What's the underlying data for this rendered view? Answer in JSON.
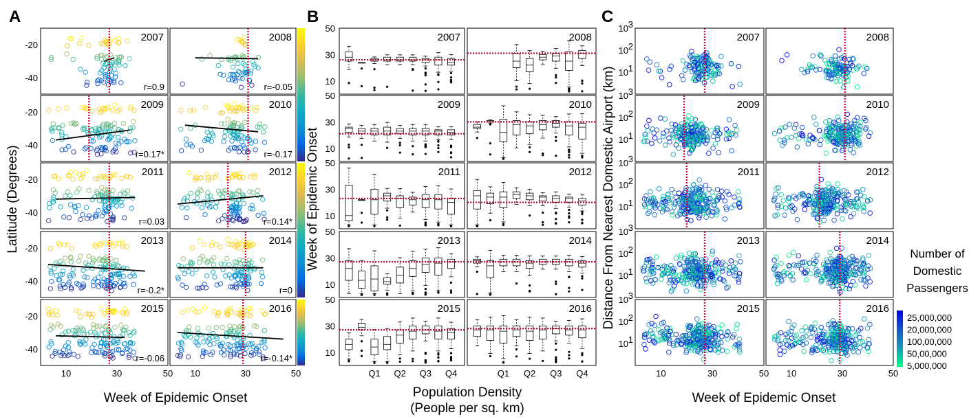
{
  "panel_labels": [
    "A",
    "B",
    "C"
  ],
  "colors": {
    "parula": [
      "#352a87",
      "#0268e1",
      "#108ed2",
      "#0fabc5",
      "#38b99e",
      "#92bf73",
      "#d9ba56",
      "#fcce2e",
      "#f9fb0e"
    ],
    "panelC": [
      "#0000e0",
      "#1858cc",
      "#1a9bb8",
      "#00ff88"
    ],
    "dashed_line": "#d6002a"
  },
  "chart_data": [
    {
      "panel": "A",
      "type": "scatter",
      "xlabel": "Week of Epidemic Onset",
      "ylabel": "Latitude (Degrees)",
      "xticks": [
        "10",
        "30",
        "50"
      ],
      "yticks": [
        "-20",
        "-40"
      ],
      "xlim": [
        0,
        50
      ],
      "ylim": [
        -50,
        -10
      ],
      "years": [
        {
          "year": "2007",
          "r": "r=0.9",
          "onset_week": 27,
          "trend": [
            25,
            -30,
            29,
            -28
          ],
          "cluster": 27,
          "spread": 0.25
        },
        {
          "year": "2008",
          "r": "r=-0.05",
          "onset_week": 31,
          "trend": [
            10,
            -28,
            35,
            -28.5
          ],
          "cluster": 28,
          "spread": 0.15
        },
        {
          "year": "2009",
          "r": "r=0.17*",
          "onset_week": 19,
          "trend": [
            6,
            -37,
            35,
            -31
          ],
          "cluster": 25,
          "spread": 0.55
        },
        {
          "year": "2010",
          "r": "r=-0.17",
          "onset_week": 31,
          "trend": [
            6,
            -28,
            35,
            -32
          ],
          "cluster": 26,
          "spread": 0.45
        },
        {
          "year": "2011",
          "r": "r=0.03",
          "onset_week": 27,
          "trend": [
            6,
            -32,
            37,
            -31
          ],
          "cluster": 26,
          "spread": 0.55
        },
        {
          "year": "2012",
          "r": "r=0.14*",
          "onset_week": 23,
          "trend": [
            3,
            -35,
            37,
            -30
          ],
          "cluster": 27,
          "spread": 0.55
        },
        {
          "year": "2013",
          "r": "r=-0.2*",
          "onset_week": 27,
          "trend": [
            3,
            -30,
            41,
            -34
          ],
          "cluster": 26,
          "spread": 0.7
        },
        {
          "year": "2014",
          "r": "r=0",
          "onset_week": 30,
          "trend": [
            3,
            -32,
            37,
            -32
          ],
          "cluster": 29,
          "spread": 0.6
        },
        {
          "year": "2015",
          "r": "r=-0.06",
          "onset_week": 27,
          "trend": [
            6,
            -32,
            33,
            -33
          ],
          "cluster": 27,
          "spread": 0.75
        },
        {
          "year": "2016",
          "r": "r=-0.14*",
          "onset_week": 29,
          "trend": [
            3,
            -30,
            45,
            -34
          ],
          "cluster": 27,
          "spread": 0.75
        }
      ]
    },
    {
      "panel": "B",
      "type": "box",
      "xlabel": "Population Density",
      "xlabel2": "(People per sq. km)",
      "ylabel": "Week of Epidemic Onset",
      "xticks": [
        "Q1",
        "Q2",
        "Q3",
        "Q4"
      ],
      "yticks": [
        "50",
        "30",
        "10"
      ],
      "ylim": [
        0,
        50
      ],
      "years": [
        {
          "year": "2007",
          "ref": 26,
          "boxes": [
            [
              25,
              32,
              28
            ],
            [
              24,
              24,
              24
            ],
            [
              25,
              27,
              26
            ],
            [
              25,
              28,
              26
            ],
            [
              25,
              28,
              26
            ],
            [
              25,
              28,
              26
            ],
            [
              24,
              27,
              26
            ],
            [
              22,
              28,
              26
            ],
            [
              22,
              27,
              24
            ]
          ]
        },
        {
          "year": "2008",
          "ref": 31,
          "boxes": [
            [
              null,
              null,
              null
            ],
            [
              null,
              null,
              null
            ],
            [
              null,
              null,
              null
            ],
            [
              20,
              31,
              25
            ],
            [
              17,
              27,
              22
            ],
            [
              26,
              30,
              28
            ],
            [
              25,
              31,
              29
            ],
            [
              18,
              32,
              25
            ],
            [
              27,
              33,
              31
            ]
          ]
        },
        {
          "year": "2009",
          "ref": 21,
          "boxes": [
            [
              22,
              26,
              25
            ],
            [
              21,
              25,
              23
            ],
            [
              20,
              25,
              23
            ],
            [
              20,
              26,
              23
            ],
            [
              21,
              25,
              23
            ],
            [
              20,
              25,
              23
            ],
            [
              20,
              25,
              23
            ],
            [
              20,
              24,
              23
            ],
            [
              20,
              24,
              22
            ]
          ]
        },
        {
          "year": "2010",
          "ref": 30,
          "boxes": [
            [
              25,
              28,
              26
            ],
            [
              30,
              31,
              30
            ],
            [
              15,
              32,
              22
            ],
            [
              20,
              31,
              28
            ],
            [
              21,
              30,
              27
            ],
            [
              24,
              31,
              28
            ],
            [
              26,
              31,
              29
            ],
            [
              20,
              30,
              27
            ],
            [
              17,
              29,
              26
            ]
          ]
        },
        {
          "year": "2011",
          "ref": 23,
          "boxes": [
            [
              6,
              33,
              10
            ],
            [
              22,
              22,
              22
            ],
            [
              11,
              30,
              22
            ],
            [
              21,
              27,
              25
            ],
            [
              16,
              25,
              23
            ],
            [
              18,
              24,
              22
            ],
            [
              16,
              26,
              22
            ],
            [
              15,
              26,
              22
            ],
            [
              11,
              23,
              20
            ]
          ]
        },
        {
          "year": "2012",
          "ref": 20,
          "boxes": [
            [
              15,
              29,
              25
            ],
            [
              19,
              27,
              24
            ],
            [
              16,
              28,
              24
            ],
            [
              23,
              28,
              26
            ],
            [
              22,
              27,
              25
            ],
            [
              21,
              25,
              24
            ],
            [
              20,
              25,
              23
            ],
            [
              20,
              24,
              23
            ],
            [
              18,
              23,
              21
            ]
          ]
        },
        {
          "year": "2013",
          "ref": 27,
          "boxes": [
            [
              13,
              28,
              22
            ],
            [
              7,
              20,
              13
            ],
            [
              5,
              24,
              14
            ],
            [
              10,
              15,
              12
            ],
            [
              11,
              23,
              17
            ],
            [
              16,
              28,
              22
            ],
            [
              19,
              30,
              25
            ],
            [
              17,
              30,
              26
            ],
            [
              22,
              29,
              27
            ]
          ]
        },
        {
          "year": "2014",
          "ref": 27,
          "boxes": [
            [
              26,
              29,
              28
            ],
            [
              15,
              28,
              24
            ],
            [
              24,
              29,
              27
            ],
            [
              24,
              29,
              27
            ],
            [
              22,
              28,
              26
            ],
            [
              25,
              29,
              27
            ],
            [
              25,
              29,
              27
            ],
            [
              24,
              29,
              27
            ],
            [
              23,
              28,
              26
            ]
          ]
        },
        {
          "year": "2015",
          "ref": 27,
          "boxes": [
            [
              12,
              20,
              16
            ],
            [
              27,
              32,
              29
            ],
            [
              8,
              20,
              14
            ],
            [
              12,
              22,
              16
            ],
            [
              17,
              27,
              23
            ],
            [
              20,
              30,
              26
            ],
            [
              24,
              30,
              27
            ],
            [
              20,
              30,
              26
            ],
            [
              20,
              28,
              25
            ]
          ]
        },
        {
          "year": "2016",
          "ref": 28,
          "boxes": [
            [
              22,
              30,
              27
            ],
            [
              19,
              30,
              27
            ],
            [
              17,
              30,
              26
            ],
            [
              22,
              30,
              27
            ],
            [
              19,
              30,
              26
            ],
            [
              20,
              30,
              27
            ],
            [
              24,
              30,
              28
            ],
            [
              23,
              30,
              27
            ],
            [
              21,
              30,
              27
            ]
          ]
        }
      ]
    },
    {
      "panel": "C",
      "type": "scatter",
      "xlabel": "Week of Epidemic Onset",
      "ylabel": "Distance From Nearest Domestic Airport (km)",
      "xticks": [
        "10",
        "30",
        "50"
      ],
      "yticks_exp": [
        "3",
        "2",
        "1"
      ],
      "ytick_base": "10",
      "xlim": [
        0,
        50
      ],
      "yscale": "log",
      "ylim": [
        1,
        1000
      ],
      "years": [
        {
          "year": "2007",
          "onset_week": 27,
          "cluster": 26,
          "spread": 0.3
        },
        {
          "year": "2008",
          "onset_week": 31,
          "cluster": 29,
          "spread": 0.35
        },
        {
          "year": "2009",
          "onset_week": 19,
          "cluster": 22,
          "spread": 0.6
        },
        {
          "year": "2010",
          "onset_week": 31,
          "cluster": 30,
          "spread": 0.6
        },
        {
          "year": "2011",
          "onset_week": 20,
          "cluster": 24,
          "spread": 0.75
        },
        {
          "year": "2012",
          "onset_week": 21,
          "cluster": 23,
          "spread": 0.7
        },
        {
          "year": "2013",
          "onset_week": 27,
          "cluster": 24,
          "spread": 0.85
        },
        {
          "year": "2014",
          "onset_week": 29,
          "cluster": 29,
          "spread": 0.8
        },
        {
          "year": "2015",
          "onset_week": 27,
          "cluster": 25,
          "spread": 0.85
        },
        {
          "year": "2016",
          "onset_week": 29,
          "cluster": 28,
          "spread": 0.85
        }
      ],
      "colorbar": {
        "title": [
          "Number of",
          "Domestic",
          "Passengers"
        ],
        "ticks": [
          "25,000,000",
          "20,000,000",
          "100,00,000",
          "50,00,000",
          "5,000,000"
        ]
      }
    }
  ]
}
